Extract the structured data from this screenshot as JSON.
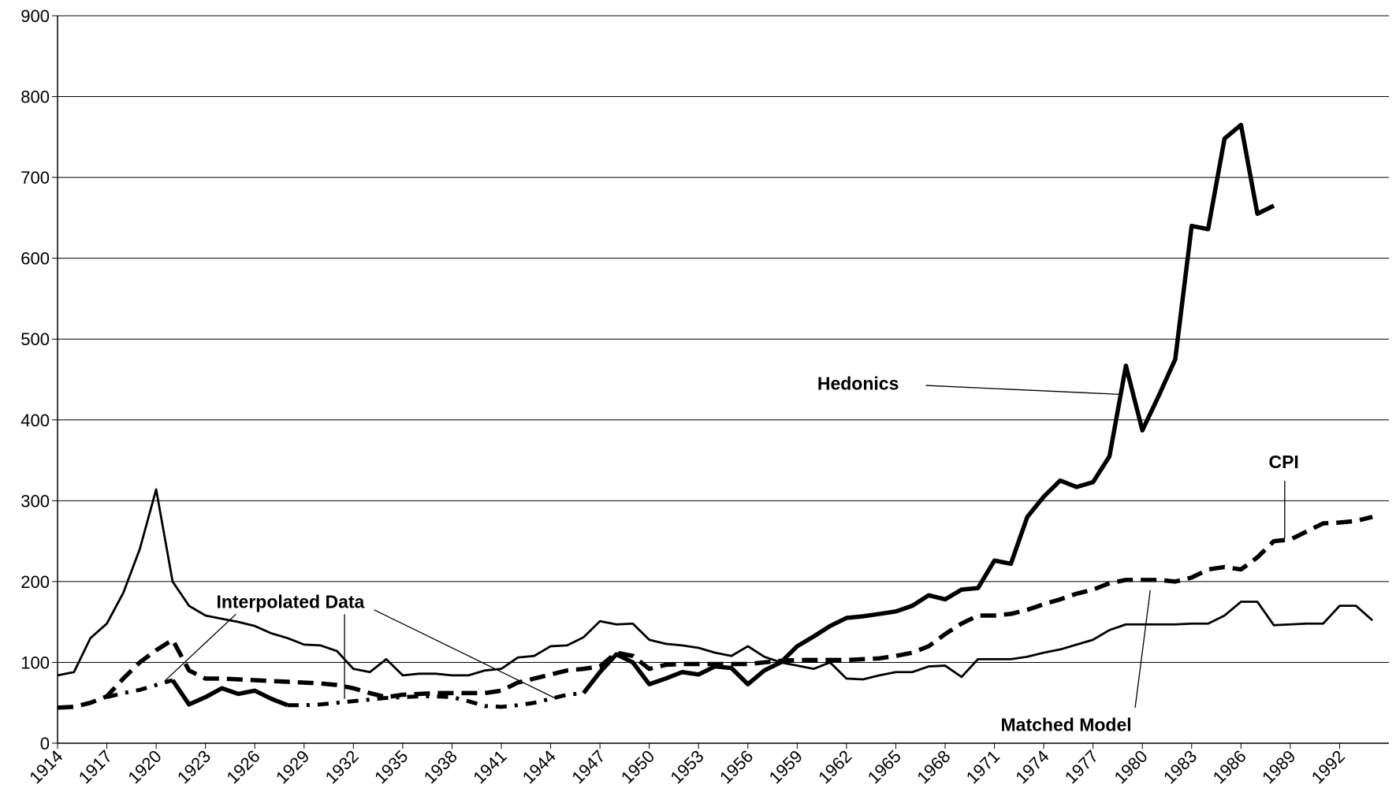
{
  "chart_data": {
    "type": "line",
    "x": [
      1914,
      1915,
      1916,
      1917,
      1918,
      1919,
      1920,
      1921,
      1922,
      1923,
      1924,
      1925,
      1926,
      1927,
      1928,
      1929,
      1930,
      1931,
      1932,
      1933,
      1934,
      1935,
      1936,
      1937,
      1938,
      1939,
      1940,
      1941,
      1942,
      1943,
      1944,
      1945,
      1946,
      1947,
      1948,
      1949,
      1950,
      1951,
      1952,
      1953,
      1954,
      1955,
      1956,
      1957,
      1958,
      1959,
      1960,
      1961,
      1962,
      1963,
      1964,
      1965,
      1966,
      1967,
      1968,
      1969,
      1970,
      1971,
      1972,
      1973,
      1974,
      1975,
      1976,
      1977,
      1978,
      1979,
      1980,
      1981,
      1982,
      1983,
      1984,
      1985,
      1986,
      1987,
      1988,
      1989,
      1990,
      1991,
      1992,
      1993,
      1994
    ],
    "series": [
      {
        "name": "Hedonics",
        "color": "#000000",
        "values": [
          null,
          null,
          null,
          null,
          null,
          null,
          null,
          78,
          48,
          57,
          68,
          61,
          65,
          55,
          47,
          null,
          null,
          null,
          null,
          null,
          null,
          null,
          null,
          null,
          null,
          null,
          null,
          null,
          null,
          null,
          null,
          null,
          62,
          88,
          110,
          100,
          73,
          80,
          88,
          85,
          95,
          93,
          73,
          90,
          100,
          120,
          132,
          145,
          155,
          157,
          160,
          163,
          170,
          183,
          178,
          190,
          192,
          226,
          222,
          280,
          305,
          325,
          317,
          323,
          355,
          467,
          387,
          430,
          475,
          640,
          636,
          748,
          765,
          655,
          665,
          null,
          null,
          null,
          null,
          null,
          null
        ]
      },
      {
        "name": "CPI",
        "color": "#000000",
        "values": [
          44,
          45,
          50,
          58,
          80,
          100,
          115,
          128,
          90,
          80,
          80,
          79,
          78,
          77,
          76,
          75,
          74,
          72,
          68,
          62,
          57,
          60,
          61,
          62,
          62,
          62,
          62,
          65,
          75,
          80,
          85,
          90,
          92,
          95,
          112,
          108,
          92,
          97,
          98,
          98,
          98,
          98,
          98,
          100,
          102,
          103,
          103,
          103,
          103,
          104,
          105,
          108,
          112,
          120,
          135,
          148,
          158,
          158,
          160,
          165,
          172,
          178,
          185,
          190,
          198,
          202,
          202,
          202,
          200,
          205,
          215,
          218,
          215,
          230,
          250,
          252,
          262,
          272,
          273,
          275,
          280
        ]
      },
      {
        "name": "Matched Model",
        "color": "#000000",
        "values": [
          84,
          88,
          130,
          148,
          186,
          240,
          314,
          200,
          170,
          158,
          154,
          150,
          145,
          136,
          130,
          122,
          121,
          114,
          92,
          88,
          104,
          84,
          86,
          86,
          84,
          84,
          90,
          92,
          106,
          108,
          120,
          121,
          131,
          151,
          147,
          148,
          128,
          123,
          121,
          118,
          112,
          108,
          120,
          107,
          100,
          96,
          92,
          100,
          80,
          79,
          84,
          88,
          88,
          95,
          96,
          82,
          104,
          104,
          104,
          107,
          112,
          116,
          122,
          128,
          140,
          147,
          147,
          147,
          147,
          148,
          148,
          158,
          175,
          175,
          146,
          147,
          148,
          148,
          170,
          170,
          152
        ]
      },
      {
        "name": "Interpolated Data",
        "color": "#000000",
        "values": [
          null,
          null,
          null,
          57,
          62,
          66,
          72,
          78,
          null,
          null,
          null,
          null,
          null,
          null,
          47,
          47,
          48,
          50,
          52,
          54,
          56,
          57,
          58,
          58,
          57,
          52,
          46,
          45,
          47,
          50,
          55,
          60,
          62,
          null,
          null,
          null,
          null,
          null,
          null,
          null,
          null,
          null,
          null,
          null,
          null,
          null,
          null,
          null,
          null,
          null,
          null,
          null,
          null,
          null,
          null,
          null,
          null,
          null,
          null,
          null,
          null,
          null,
          null,
          null,
          null,
          null,
          null,
          null,
          null,
          null,
          null,
          null,
          null,
          null,
          null,
          null,
          null,
          null,
          null,
          null,
          null
        ]
      }
    ],
    "xlim": [
      1914,
      1995
    ],
    "xticks": [
      1914,
      1917,
      1920,
      1923,
      1926,
      1929,
      1932,
      1935,
      1938,
      1941,
      1944,
      1947,
      1950,
      1953,
      1956,
      1959,
      1962,
      1965,
      1968,
      1971,
      1974,
      1977,
      1980,
      1983,
      1986,
      1989,
      1992
    ],
    "ylim": [
      0,
      900
    ],
    "yticks": [
      0,
      100,
      200,
      300,
      400,
      500,
      600,
      700,
      800,
      900
    ],
    "grid": true
  }
}
